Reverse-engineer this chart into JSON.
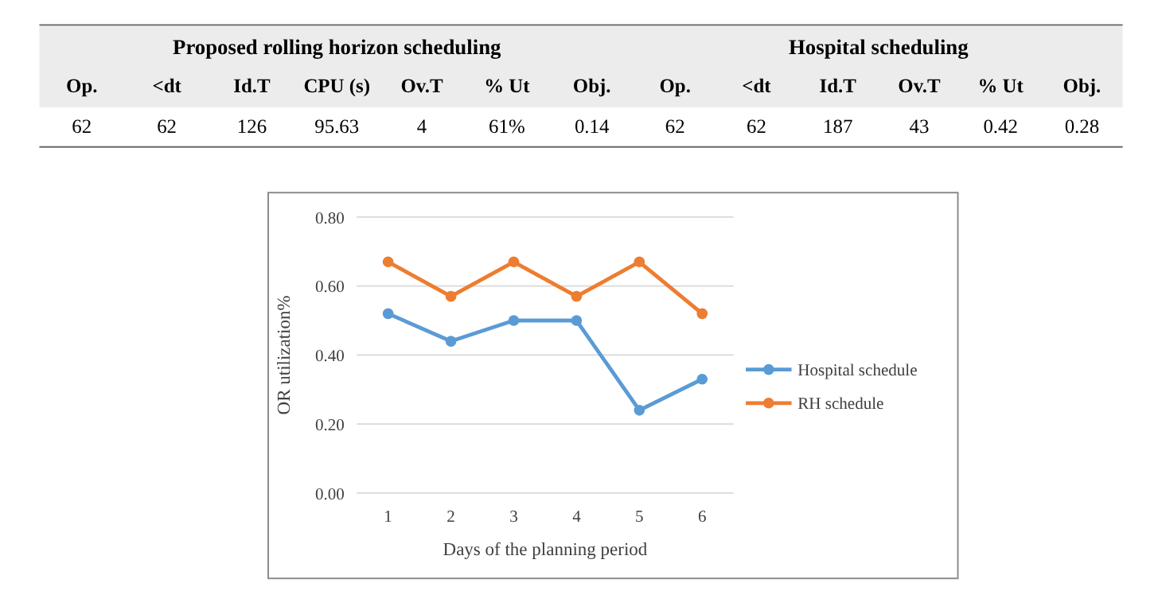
{
  "chart_data": [
    {
      "type": "other",
      "annotations": [
        "Proposed rolling horizon scheduling",
        "Hospital scheduling",
        "Op.",
        "<dt",
        "Id.T",
        "CPU (s)",
        "Ov.T",
        "% Ut",
        "Obj.",
        "Op.",
        "<dt",
        "Id.T",
        "Ov.T",
        "% Ut",
        "Obj.",
        "62",
        "62",
        "126",
        "95.63",
        "4",
        "61%",
        "0.14",
        "62",
        "62",
        "187",
        "43",
        "0.42",
        "0.28"
      ]
    },
    {
      "type": "line",
      "xlabel": "Days of the planning period",
      "ylabel": "OR utilization%",
      "categories": [
        "1",
        "2",
        "3",
        "4",
        "5",
        "6"
      ],
      "series": [
        {
          "name": "Hospital schedule",
          "color": "#5b9bd5",
          "values": [
            0.52,
            0.44,
            0.5,
            0.5,
            0.24,
            0.33
          ]
        },
        {
          "name": "RH schedule",
          "color": "#ed7d31",
          "values": [
            0.67,
            0.57,
            0.67,
            0.57,
            0.67,
            0.52
          ]
        }
      ],
      "ylim": [
        0,
        0.8
      ],
      "yticks": [
        {
          "value": 0,
          "label": "0.00"
        },
        {
          "value": 0.2,
          "label": "0.20"
        },
        {
          "value": 0.4,
          "label": "0.40"
        },
        {
          "value": 0.6,
          "label": "0.60"
        },
        {
          "value": 0.8,
          "label": "0.80"
        }
      ],
      "grid": "y",
      "legend": "right",
      "marker": "circle",
      "line_style": "solid"
    }
  ]
}
